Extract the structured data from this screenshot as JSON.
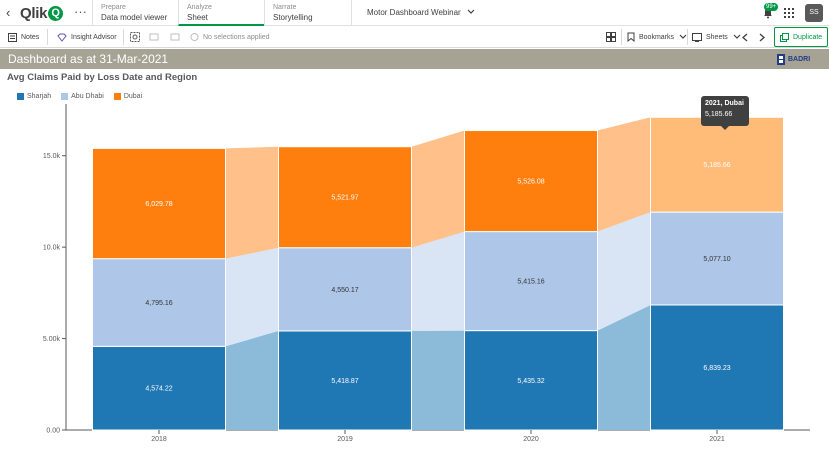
{
  "topbar": {
    "back": "‹",
    "logo": "Qlik",
    "logo_q": "Q",
    "more": "···",
    "tabs": [
      {
        "small": "Prepare",
        "big": "Data model viewer"
      },
      {
        "small": "Analyze",
        "big": "Sheet"
      },
      {
        "small": "Narrate",
        "big": "Storytelling"
      }
    ],
    "app_name": "Motor Dashboard Webinar",
    "notifications_badge": "99+",
    "avatar_initials": "SS"
  },
  "toolbar": {
    "notes": "Notes",
    "insight_advisor": "Insight Advisor",
    "selections": "No selections applied",
    "bookmarks": "Bookmarks",
    "sheets": "Sheets",
    "duplicate": "Duplicate"
  },
  "sheet": {
    "title": "Dashboard as at 31-Mar-2021",
    "logo_text": "BADRI"
  },
  "tooltip": {
    "title": "2021, Dubai",
    "value": "5,185.66"
  },
  "colors": {
    "accent": "#009845",
    "sharjah": "#1f77b4",
    "abu_dhabi": "#aec7e8",
    "dubai": "#ff7f0e",
    "dubai_faded": "#ffbb78"
  },
  "chart_data": {
    "type": "bar",
    "stacked": true,
    "title": "Avg Claims Paid by Loss Date and Region",
    "categories": [
      "2018",
      "2019",
      "2020",
      "2021"
    ],
    "series": [
      {
        "name": "Sharjah",
        "values": [
          4574.22,
          5418.87,
          5435.32,
          6839.23
        ],
        "labels": [
          "4,574.22",
          "5,418.87",
          "5,435.32",
          "6,839.23"
        ]
      },
      {
        "name": "Abu Dhabi",
        "values": [
          4795.16,
          4550.17,
          5415.16,
          5077.1
        ],
        "labels": [
          "4,795.16",
          "4,550.17",
          "5,415.16",
          "5,077.10"
        ]
      },
      {
        "name": "Dubai",
        "values": [
          6029.78,
          5521.97,
          5526.08,
          5185.66
        ],
        "labels": [
          "6,029.78",
          "5,521.97",
          "5,526.08",
          "5,185.66"
        ]
      }
    ],
    "yticks": [
      0,
      5000,
      10000,
      15000
    ],
    "ytick_labels": [
      "0.00",
      "5.00k",
      "10.0k",
      "15.0k"
    ],
    "ylim": [
      0,
      17500
    ],
    "legend_position": "top-left",
    "highlighted": {
      "category": "2021",
      "series": "Dubai"
    }
  }
}
